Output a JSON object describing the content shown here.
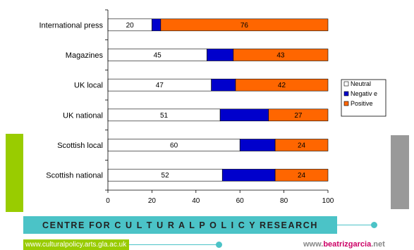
{
  "chart_data": {
    "type": "bar",
    "orientation": "horizontal",
    "stacked": true,
    "categories": [
      "International press",
      "Magazines",
      "UK local",
      "UK national",
      "Scottish local",
      "Scottish national"
    ],
    "series": [
      {
        "name": "Neutral",
        "color": "#ffffff",
        "values": [
          20,
          45,
          47,
          51,
          60,
          52
        ],
        "value_labels": [
          "20",
          "45",
          "47",
          "51",
          "60",
          "52"
        ]
      },
      {
        "name": "Negativ e",
        "color": "#0000cc",
        "values": [
          4,
          12,
          11,
          22,
          16,
          24
        ],
        "value_labels": [
          "",
          "",
          "",
          "",
          "",
          ""
        ]
      },
      {
        "name": "Positive",
        "color": "#ff6600",
        "values": [
          76,
          43,
          42,
          27,
          24,
          24
        ],
        "value_labels": [
          "76",
          "43",
          "42",
          "27",
          "24",
          "24"
        ]
      }
    ],
    "xlim": [
      0,
      100
    ],
    "xticks": [
      0,
      20,
      40,
      60,
      80,
      100
    ],
    "grid": false,
    "legend": "right"
  },
  "footer": {
    "centre_label": "CENTRE FOR C U L T U R A L P O L I C Y RESEARCH",
    "url": "www.culturalpolicy.arts.gla.ac.uk",
    "site_prefix": "www.",
    "site_brand": "beatrizgarcia",
    "site_suffix": ".net"
  },
  "colors": {
    "accent_green": "#99cc00",
    "accent_teal": "#4bc3c7",
    "accent_grey": "#999999",
    "brand_magenta": "#cc0066"
  }
}
